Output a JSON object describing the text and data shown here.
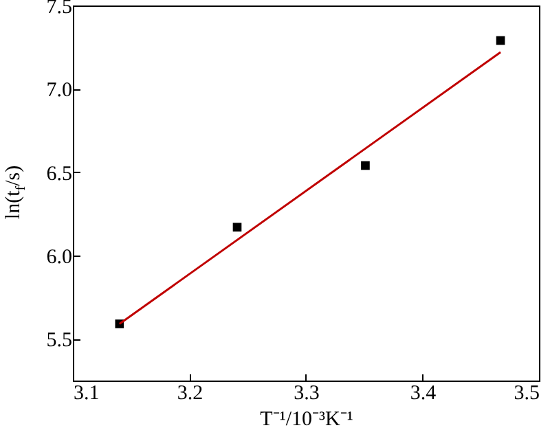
{
  "chart_data": {
    "type": "scatter",
    "xlabel": "T⁻¹/10⁻³K⁻¹",
    "ylabel": "ln(t$_{f}$/s)",
    "xlim": [
      3.1,
      3.5
    ],
    "xticks": [
      3.1,
      3.2,
      3.3,
      3.4,
      3.5
    ],
    "ylim": [
      5.25,
      7.5
    ],
    "yticks": [
      5.5,
      {
        "value": 6,
        "label": "6.0"
      },
      6.5,
      {
        "value": 7,
        "label": "7.0"
      },
      7.5
    ],
    "series": [
      {
        "type": "scatter",
        "color": "#000000",
        "marker": "square",
        "x": [
          3.14,
          3.241,
          3.351,
          3.467
        ],
        "values": [
          5.59,
          6.17,
          6.54,
          7.29
        ]
      },
      {
        "type": "line",
        "color": "#c00000",
        "marker": "none",
        "x": [
          3.14,
          3.467
        ],
        "values": [
          5.59,
          7.22
        ]
      }
    ]
  }
}
